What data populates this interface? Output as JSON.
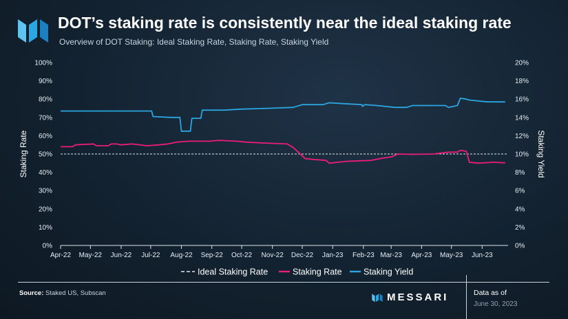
{
  "header": {
    "title": "DOT’s staking rate is consistently near the ideal staking rate",
    "subtitle": "Overview of DOT Staking: Ideal Staking Rate, Staking Rate, Staking Yield"
  },
  "footer": {
    "source_label": "Source:",
    "source_text": "Staked US, Subscan",
    "brand": "MESSARI",
    "data_as_of_label": "Data as of",
    "data_as_of_date": "June 30, 2023"
  },
  "colors": {
    "staking_rate": "#ee1c7a",
    "staking_yield": "#2ba6e1",
    "ideal": "#dfe6ec",
    "logo": "#2ba6e1"
  },
  "chart_data": {
    "type": "line",
    "title": "DOT’s staking rate is consistently near the ideal staking rate",
    "subtitle": "Overview of DOT Staking: Ideal Staking Rate, Staking Rate, Staking Yield",
    "ylabel": "Staking Rate",
    "y2label": "Staking Yield",
    "ylim": [
      0,
      100
    ],
    "y2lim": [
      0,
      20
    ],
    "yticks": [
      "0%",
      "10%",
      "20%",
      "30%",
      "40%",
      "50%",
      "60%",
      "70%",
      "80%",
      "90%",
      "100%"
    ],
    "y2ticks": [
      "0%",
      "2%",
      "4%",
      "6%",
      "8%",
      "10%",
      "12%",
      "14%",
      "16%",
      "18%",
      "20%"
    ],
    "xlim": [
      0,
      15
    ],
    "x_ticks": [
      {
        "label": "Apr-22",
        "x": 0
      },
      {
        "label": "May-22",
        "x": 1
      },
      {
        "label": "Jun-22",
        "x": 2.03
      },
      {
        "label": "Jul-22",
        "x": 3.02
      },
      {
        "label": "Aug-22",
        "x": 4.05
      },
      {
        "label": "Sep-22",
        "x": 5.07
      },
      {
        "label": "Oct-22",
        "x": 6.07
      },
      {
        "label": "Nov-22",
        "x": 7.1
      },
      {
        "label": "Dec-22",
        "x": 8.1
      },
      {
        "label": "Jan-23",
        "x": 9.12
      },
      {
        "label": "Feb-23",
        "x": 10.15
      },
      {
        "label": "Mar-23",
        "x": 11.08
      },
      {
        "label": "Apr-23",
        "x": 12.1
      },
      {
        "label": "May-23",
        "x": 13.1
      },
      {
        "label": "Jun-23",
        "x": 14.13
      }
    ],
    "legend": [
      "Ideal Staking Rate",
      "Staking Rate",
      "Staking Yield"
    ],
    "series": [
      {
        "name": "Ideal Staking Rate",
        "axis": "left",
        "style": "dashed",
        "points": [
          [
            0,
            50
          ],
          [
            15,
            50
          ]
        ]
      },
      {
        "name": "Staking Rate",
        "axis": "left",
        "style": "solid",
        "points": [
          [
            0,
            54
          ],
          [
            0.4,
            54
          ],
          [
            0.5,
            55
          ],
          [
            1.1,
            55.5
          ],
          [
            1.2,
            54.5
          ],
          [
            1.6,
            54.5
          ],
          [
            1.7,
            55.5
          ],
          [
            1.9,
            55.5
          ],
          [
            2.0,
            55
          ],
          [
            2.4,
            55.5
          ],
          [
            2.9,
            54.5
          ],
          [
            3.3,
            55
          ],
          [
            3.6,
            55.5
          ],
          [
            3.9,
            56.5
          ],
          [
            4.3,
            57
          ],
          [
            5.0,
            57
          ],
          [
            5.3,
            57.5
          ],
          [
            5.9,
            57
          ],
          [
            6.2,
            56.5
          ],
          [
            6.8,
            56
          ],
          [
            7.6,
            55.5
          ],
          [
            7.8,
            53.5
          ],
          [
            8.0,
            50.5
          ],
          [
            8.2,
            47.5
          ],
          [
            8.5,
            47
          ],
          [
            8.9,
            46.5
          ],
          [
            9.0,
            45
          ],
          [
            9.3,
            45.5
          ],
          [
            9.6,
            46
          ],
          [
            10.4,
            46.5
          ],
          [
            10.7,
            47.5
          ],
          [
            11.1,
            48.5
          ],
          [
            11.3,
            50
          ],
          [
            11.8,
            49.8
          ],
          [
            12.5,
            50
          ],
          [
            13.0,
            51
          ],
          [
            13.3,
            51
          ],
          [
            13.4,
            52
          ],
          [
            13.6,
            51.5
          ],
          [
            13.7,
            45.5
          ],
          [
            14.0,
            45
          ],
          [
            14.5,
            45.5
          ],
          [
            14.9,
            45.2
          ]
        ]
      },
      {
        "name": "Staking Yield",
        "axis": "right",
        "style": "solid",
        "points": [
          [
            0,
            14.7
          ],
          [
            3.05,
            14.7
          ],
          [
            3.1,
            14.1
          ],
          [
            3.7,
            14.0
          ],
          [
            4.0,
            14.0
          ],
          [
            4.05,
            12.5
          ],
          [
            4.35,
            12.5
          ],
          [
            4.4,
            13.9
          ],
          [
            4.7,
            13.9
          ],
          [
            4.75,
            14.8
          ],
          [
            5.5,
            14.8
          ],
          [
            6.0,
            14.9
          ],
          [
            7.0,
            15.0
          ],
          [
            7.8,
            15.1
          ],
          [
            8.1,
            15.4
          ],
          [
            8.8,
            15.4
          ],
          [
            9.0,
            15.6
          ],
          [
            9.5,
            15.5
          ],
          [
            10.1,
            15.4
          ],
          [
            10.12,
            15.2
          ],
          [
            10.2,
            15.4
          ],
          [
            10.6,
            15.3
          ],
          [
            11.2,
            15.1
          ],
          [
            11.6,
            15.1
          ],
          [
            11.8,
            15.3
          ],
          [
            12.5,
            15.3
          ],
          [
            12.9,
            15.3
          ],
          [
            13.0,
            15.1
          ],
          [
            13.3,
            15.3
          ],
          [
            13.4,
            16.1
          ],
          [
            13.6,
            16.0
          ],
          [
            13.7,
            15.9
          ],
          [
            14.3,
            15.7
          ],
          [
            14.9,
            15.7
          ]
        ]
      }
    ]
  }
}
